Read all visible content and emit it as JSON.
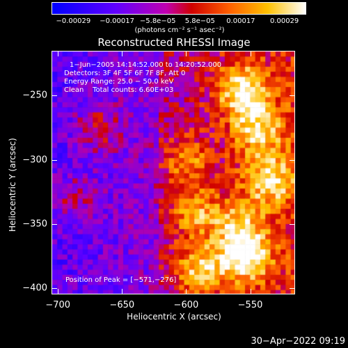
{
  "chart_data": {
    "type": "heatmap",
    "title": "Reconstructed RHESSI Image",
    "xlabel": "Heliocentric X (arcsec)",
    "ylabel": "Heliocentric Y (arcsec)",
    "xlim": [
      -705,
      -515
    ],
    "ylim": [
      -405,
      -215
    ],
    "x_ticks": [
      "−700",
      "−650",
      "−600",
      "−550"
    ],
    "x_tick_values": [
      -700,
      -650,
      -600,
      -550
    ],
    "y_ticks": [
      "−250",
      "−300",
      "−350",
      "−400"
    ],
    "y_tick_values": [
      -250,
      -300,
      -350,
      -400
    ],
    "colorbar": {
      "ticks": [
        "−0.00029",
        "−0.00017",
        "−5.8e−05",
        "5.8e−05",
        "0.00017",
        "0.00029"
      ],
      "tick_values": [
        -0.00029,
        -0.00017,
        -5.8e-05,
        5.8e-05,
        0.00017,
        0.00029
      ],
      "range": [
        -0.00035,
        0.00035
      ],
      "unit": "(photons cm⁻² s⁻¹ asec⁻²)",
      "colormap": [
        "#0000ff",
        "#5a00ff",
        "#a000c8",
        "#c80000",
        "#ff4000",
        "#ff9000",
        "#ffd000",
        "#ffffff"
      ]
    },
    "annotations": {
      "time_range": "1−Jun−2005 14:14:52.000 to 14:20:52.000",
      "detectors": "Detectors: 3F 4F 5F 6F 7F 8F, Att 0",
      "energy": "Energy Range: 25.0 − 50.0 keV",
      "algorithm": "Clean",
      "total_counts": "Total counts: 6.60E+03",
      "peak": "Position of Peak = [−571,−276]"
    },
    "bright_regions": [
      {
        "x": -557,
        "y": -245,
        "intensity": 0.9
      },
      {
        "x": -545,
        "y": -275,
        "intensity": 0.7
      },
      {
        "x": -535,
        "y": -315,
        "intensity": 0.75
      },
      {
        "x": -560,
        "y": -350,
        "intensity": 0.6
      },
      {
        "x": -555,
        "y": -375,
        "intensity": 0.95
      },
      {
        "x": -590,
        "y": -385,
        "intensity": 0.75
      },
      {
        "x": -595,
        "y": -340,
        "intensity": 0.6
      },
      {
        "x": -600,
        "y": -300,
        "intensity": 0.5
      },
      {
        "x": -670,
        "y": -275,
        "intensity": 0.4
      },
      {
        "x": -690,
        "y": -330,
        "intensity": 0.35
      }
    ]
  },
  "timestamp": "30−Apr−2022 09:19"
}
